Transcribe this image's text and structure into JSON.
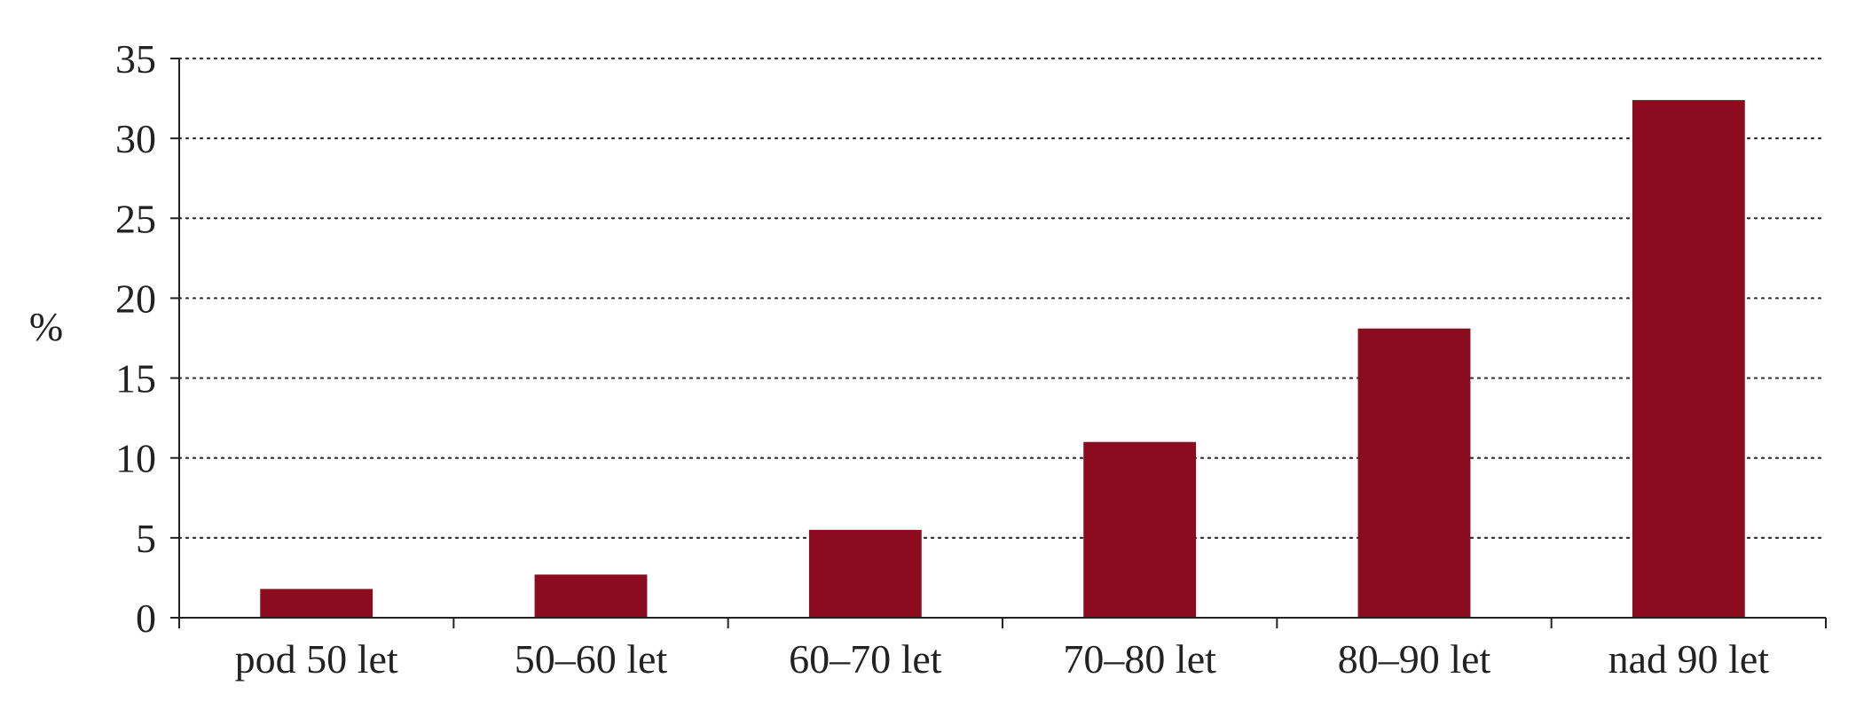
{
  "chart_data": {
    "type": "bar",
    "categories": [
      "pod 50 let",
      "50–60 let",
      "60–70 let",
      "70–80 let",
      "80–90 let",
      "nad 90 let"
    ],
    "values": [
      1.8,
      2.7,
      5.5,
      11.0,
      18.1,
      32.4
    ],
    "ylabel": "%",
    "ylim": [
      0,
      35
    ],
    "yticks": [
      0,
      5,
      10,
      15,
      20,
      25,
      30,
      35
    ],
    "grid": true,
    "grid_style": "dotted",
    "bar_color": "#8b0c1f",
    "axis_color": "#222222",
    "grid_color": "#333333"
  }
}
